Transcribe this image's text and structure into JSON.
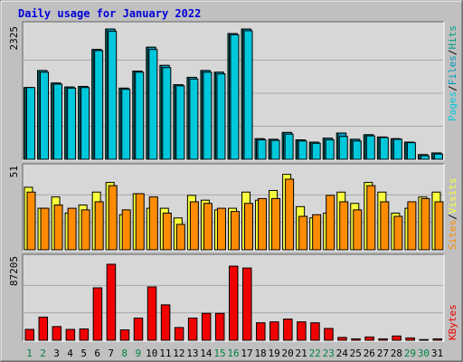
{
  "title": "Daily usage for January 2022",
  "colors": {
    "background": "#c0c0c0",
    "panel": "#d7d7d7",
    "title": "#0000d8",
    "pages": "#00c8dc",
    "files": "#009bbe",
    "hits": "#00a08c",
    "visits": "#f8ff3c",
    "sites": "#ff8c00",
    "kbytes": "#f00000",
    "day_weekend": "#008040",
    "day_weekday": "#000000"
  },
  "right_labels": {
    "top": [
      "Pages",
      "/",
      "Files",
      "/",
      "Hits"
    ],
    "middle": [
      "Sites",
      "/",
      "Visits"
    ],
    "bottom": [
      "KBytes"
    ]
  },
  "chart_data": [
    {
      "type": "bar",
      "panel": "hits-files-pages",
      "y_label": "2325",
      "ylim": [
        0,
        2325
      ],
      "grid": true,
      "categories": [
        "1",
        "2",
        "3",
        "4",
        "5",
        "6",
        "7",
        "8",
        "9",
        "10",
        "11",
        "12",
        "13",
        "14",
        "15",
        "16",
        "17",
        "18",
        "19",
        "20",
        "21",
        "22",
        "23",
        "24",
        "25",
        "26",
        "27",
        "28",
        "29",
        "30",
        "31"
      ],
      "series": [
        {
          "name": "Hits",
          "values": [
            1270,
            1570,
            1350,
            1280,
            1290,
            1940,
            2300,
            1260,
            1560,
            1980,
            1660,
            1320,
            1450,
            1570,
            1540,
            2220,
            2300,
            370,
            360,
            480,
            350,
            310,
            380,
            470,
            360,
            440,
            400,
            370,
            310,
            90,
            120
          ]
        },
        {
          "name": "Files",
          "values": [
            1270,
            1570,
            1350,
            1280,
            1290,
            1940,
            2300,
            1260,
            1560,
            1980,
            1660,
            1320,
            1450,
            1570,
            1540,
            2220,
            2300,
            370,
            360,
            480,
            350,
            310,
            380,
            470,
            360,
            440,
            400,
            370,
            310,
            90,
            120
          ]
        },
        {
          "name": "Pages",
          "values": [
            1270,
            1540,
            1330,
            1260,
            1270,
            1920,
            2260,
            1240,
            1540,
            1940,
            1620,
            1300,
            1420,
            1540,
            1510,
            2200,
            2270,
            350,
            340,
            450,
            330,
            290,
            350,
            410,
            330,
            420,
            390,
            360,
            300,
            70,
            100
          ]
        }
      ]
    },
    {
      "type": "bar",
      "panel": "visits-sites",
      "y_label": "51",
      "ylim": [
        0,
        51
      ],
      "grid": true,
      "categories": [
        "1",
        "2",
        "3",
        "4",
        "5",
        "6",
        "7",
        "8",
        "9",
        "10",
        "11",
        "12",
        "13",
        "14",
        "15",
        "16",
        "17",
        "18",
        "19",
        "20",
        "21",
        "22",
        "23",
        "24",
        "25",
        "26",
        "27",
        "28",
        "29",
        "30",
        "31"
      ],
      "series": [
        {
          "name": "Visits",
          "values": [
            39,
            26,
            33,
            23,
            28,
            36,
            42,
            22,
            35,
            26,
            26,
            20,
            34,
            31,
            25,
            26,
            36,
            31,
            37,
            47,
            27,
            20,
            23,
            36,
            29,
            42,
            36,
            23,
            26,
            33,
            36
          ]
        },
        {
          "name": "Sites",
          "values": [
            36,
            26,
            28,
            26,
            25,
            30,
            40,
            25,
            35,
            33,
            23,
            16,
            30,
            29,
            26,
            24,
            29,
            32,
            32,
            44,
            21,
            22,
            34,
            30,
            25,
            40,
            30,
            21,
            30,
            32,
            30
          ]
        }
      ]
    },
    {
      "type": "bar",
      "panel": "kbytes",
      "y_label": "87205",
      "ylim": [
        0,
        87205
      ],
      "grid": true,
      "categories": [
        "1",
        "2",
        "3",
        "4",
        "5",
        "6",
        "7",
        "8",
        "9",
        "10",
        "11",
        "12",
        "13",
        "14",
        "15",
        "16",
        "17",
        "18",
        "19",
        "20",
        "21",
        "22",
        "23",
        "24",
        "25",
        "26",
        "27",
        "28",
        "29",
        "30",
        "31"
      ],
      "series": [
        {
          "name": "KBytes",
          "values": [
            12000,
            25000,
            15000,
            12000,
            12500,
            56000,
            81000,
            11500,
            24000,
            57000,
            38000,
            14000,
            24000,
            29000,
            29000,
            79000,
            77000,
            19000,
            20000,
            23000,
            20000,
            19000,
            13000,
            3500,
            2000,
            4000,
            2000,
            5000,
            3000,
            1200,
            2000
          ]
        }
      ]
    }
  ],
  "days": [
    {
      "label": "1",
      "weekend": true
    },
    {
      "label": "2",
      "weekend": true
    },
    {
      "label": "3",
      "weekend": false
    },
    {
      "label": "4",
      "weekend": false
    },
    {
      "label": "5",
      "weekend": false
    },
    {
      "label": "6",
      "weekend": false
    },
    {
      "label": "7",
      "weekend": false
    },
    {
      "label": "8",
      "weekend": true
    },
    {
      "label": "9",
      "weekend": true
    },
    {
      "label": "10",
      "weekend": false
    },
    {
      "label": "11",
      "weekend": false
    },
    {
      "label": "12",
      "weekend": false
    },
    {
      "label": "13",
      "weekend": false
    },
    {
      "label": "14",
      "weekend": false
    },
    {
      "label": "15",
      "weekend": true
    },
    {
      "label": "16",
      "weekend": true
    },
    {
      "label": "17",
      "weekend": false
    },
    {
      "label": "18",
      "weekend": false
    },
    {
      "label": "19",
      "weekend": false
    },
    {
      "label": "20",
      "weekend": false
    },
    {
      "label": "21",
      "weekend": false
    },
    {
      "label": "22",
      "weekend": true
    },
    {
      "label": "23",
      "weekend": true
    },
    {
      "label": "24",
      "weekend": false
    },
    {
      "label": "25",
      "weekend": false
    },
    {
      "label": "26",
      "weekend": false
    },
    {
      "label": "27",
      "weekend": false
    },
    {
      "label": "28",
      "weekend": false
    },
    {
      "label": "29",
      "weekend": true
    },
    {
      "label": "30",
      "weekend": true
    },
    {
      "label": "31",
      "weekend": false
    }
  ]
}
